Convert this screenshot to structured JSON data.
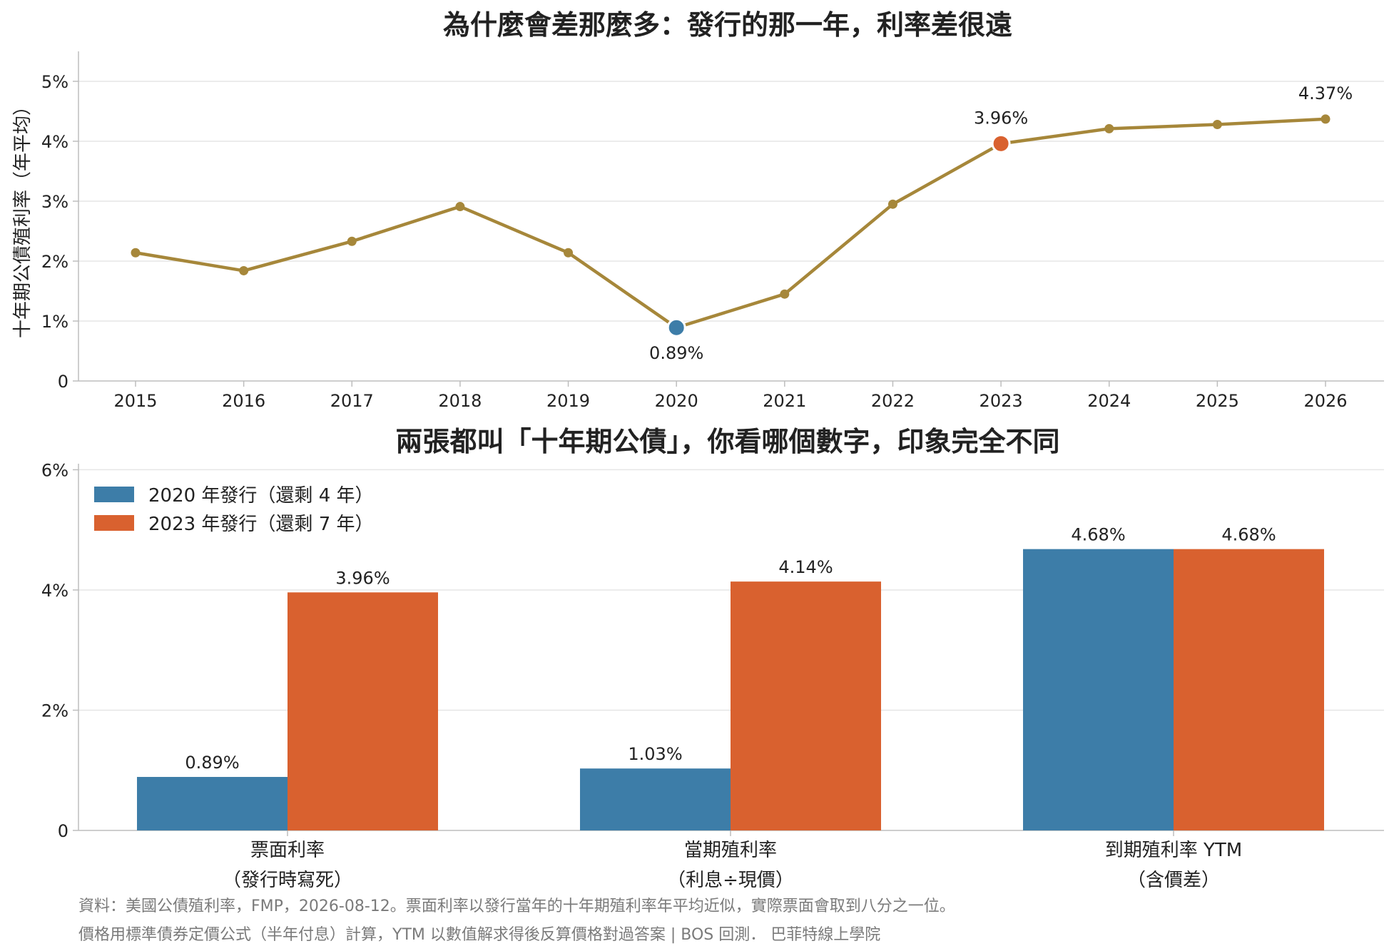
{
  "colors": {
    "line": "#A6873A",
    "blue": "#3D7DA8",
    "orange": "#D9612F",
    "grid": "#e6e6e6",
    "axis": "#bdbdbd",
    "text": "#222222",
    "footer": "#7a7a7a"
  },
  "chart_data": [
    {
      "type": "line",
      "title": "為什麼會差那麼多：發行的那一年，利率差很遠",
      "ylabel": "十年期公債殖利率（年平均）",
      "xlabel": "",
      "ylim": [
        0,
        5.5
      ],
      "yticks": [
        0,
        1,
        2,
        3,
        4,
        5
      ],
      "ytick_labels": [
        "0",
        "1%",
        "2%",
        "3%",
        "4%",
        "5%"
      ],
      "x": [
        "2015",
        "2016",
        "2017",
        "2018",
        "2019",
        "2020",
        "2021",
        "2022",
        "2023",
        "2024",
        "2025",
        "2026"
      ],
      "series": [
        {
          "values": [
            2.14,
            1.84,
            2.33,
            2.91,
            2.14,
            0.89,
            1.45,
            2.95,
            3.96,
            4.21,
            4.28,
            4.37
          ]
        }
      ],
      "highlights": [
        {
          "x": "2020",
          "label": "0.89%",
          "color": "blue",
          "label_position": "below"
        },
        {
          "x": "2023",
          "label": "3.96%",
          "color": "orange",
          "label_position": "above"
        },
        {
          "x": "2026",
          "label": "4.37%",
          "color": "line",
          "label_position": "above"
        }
      ],
      "grid": true
    },
    {
      "type": "bar",
      "title": "兩張都叫「十年期公債」，你看哪個數字，印象完全不同",
      "ylim": [
        0,
        6.1
      ],
      "yticks": [
        0,
        2,
        4,
        6
      ],
      "ytick_labels": [
        "0",
        "2%",
        "4%",
        "6%"
      ],
      "categories": [
        [
          "票面利率",
          "（發行時寫死）"
        ],
        [
          "當期殖利率",
          "（利息÷現價）"
        ],
        [
          "到期殖利率 YTM",
          "（含價差）"
        ]
      ],
      "series": [
        {
          "name": "2020 年發行（還剩 4 年）",
          "color": "blue",
          "values": [
            0.89,
            1.03,
            4.68
          ],
          "labels": [
            "0.89%",
            "1.03%",
            "4.68%"
          ]
        },
        {
          "name": "2023 年發行（還剩 7 年）",
          "color": "orange",
          "values": [
            3.96,
            4.14,
            4.68
          ],
          "labels": [
            "3.96%",
            "4.14%",
            "4.68%"
          ]
        }
      ],
      "legend": "top-left",
      "grid": true
    }
  ],
  "footer": {
    "line1": "資料：美國公債殖利率，FMP，2026-08-12。票面利率以發行當年的十年期殖利率年平均近似，實際票面會取到八分之一位。",
    "line2": "價格用標準債券定價公式（半年付息）計算，YTM 以數值解求得後反算價格對過答案 | BOS 回測．  巴菲特線上學院"
  }
}
